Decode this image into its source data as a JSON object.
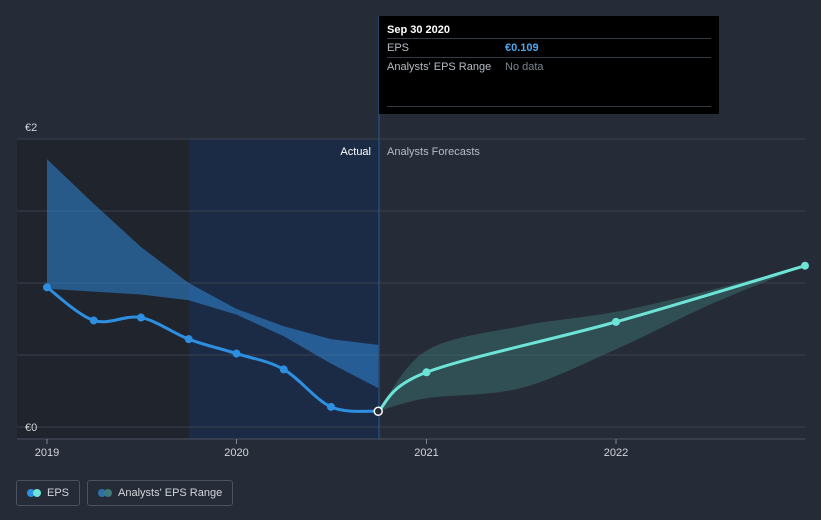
{
  "chart_data": {
    "type": "line",
    "y_axis": {
      "unit": "€",
      "min": 0,
      "max": 2,
      "tick_labels": [
        "€0",
        "€2"
      ]
    },
    "x_axis": {
      "tick_labels": [
        "2019",
        "2020",
        "2021",
        "2022"
      ]
    },
    "zones": {
      "actual_label": "Actual",
      "forecast_label": "Analysts Forecasts"
    },
    "series": [
      {
        "name": "EPS",
        "color": "#2e8fe0",
        "x": [
          "2019-01-01",
          "2019-04-01",
          "2019-07-01",
          "2019-10-01",
          "2020-01-01",
          "2020-04-01",
          "2020-07-01",
          "2020-09-30"
        ],
        "y": [
          0.97,
          0.74,
          0.76,
          0.61,
          0.51,
          0.4,
          0.14,
          0.109
        ]
      },
      {
        "name": "EPS forecast",
        "color": "#6ee3d7",
        "x": [
          "2020-09-30",
          "2021-01-01",
          "2022-01-01",
          "2022-12-31"
        ],
        "y": [
          0.109,
          0.38,
          0.73,
          1.12
        ]
      }
    ],
    "ranges": [
      {
        "name": "Analysts' EPS Range (past)",
        "color": "#2e86d6",
        "x": [
          "2019-01-01",
          "2019-04-01",
          "2019-07-01",
          "2019-10-01",
          "2020-01-01",
          "2020-04-01",
          "2020-07-01",
          "2020-09-30"
        ],
        "low": [
          0.96,
          0.94,
          0.92,
          0.88,
          0.78,
          0.63,
          0.44,
          0.27
        ],
        "high": [
          1.86,
          1.55,
          1.25,
          1.0,
          0.82,
          0.7,
          0.61,
          0.57
        ]
      },
      {
        "name": "Analysts' EPS Range (forecast)",
        "color": "#3d7a78",
        "x": [
          "2020-09-30",
          "2021-01-01",
          "2021-07-01",
          "2022-01-01",
          "2022-07-01",
          "2022-12-31"
        ],
        "low": [
          0.109,
          0.2,
          0.27,
          0.54,
          0.85,
          1.12
        ],
        "high": [
          0.109,
          0.53,
          0.7,
          0.8,
          0.95,
          1.12
        ]
      }
    ],
    "tooltip": {
      "date": "Sep 30 2020",
      "rows": [
        {
          "label": "EPS",
          "value": "€0.109",
          "value_color": "#4aa8f0"
        },
        {
          "label": "Analysts' EPS Range",
          "value": "No data",
          "value_color": "#7d8591"
        }
      ]
    },
    "legend": [
      {
        "label": "EPS"
      },
      {
        "label": "Analysts' EPS Range"
      }
    ]
  }
}
